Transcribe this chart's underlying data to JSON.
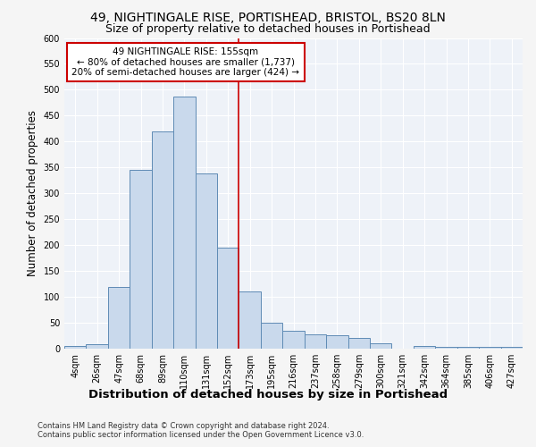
{
  "title1": "49, NIGHTINGALE RISE, PORTISHEAD, BRISTOL, BS20 8LN",
  "title2": "Size of property relative to detached houses in Portishead",
  "xlabel": "Distribution of detached houses by size in Portishead",
  "ylabel": "Number of detached properties",
  "bin_labels": [
    "4sqm",
    "26sqm",
    "47sqm",
    "68sqm",
    "89sqm",
    "110sqm",
    "131sqm",
    "152sqm",
    "173sqm",
    "195sqm",
    "216sqm",
    "237sqm",
    "258sqm",
    "279sqm",
    "300sqm",
    "321sqm",
    "342sqm",
    "364sqm",
    "385sqm",
    "406sqm",
    "427sqm"
  ],
  "bar_heights": [
    6,
    8,
    120,
    345,
    420,
    487,
    338,
    195,
    111,
    50,
    35,
    27,
    26,
    20,
    10,
    0,
    5,
    4,
    3,
    4,
    3
  ],
  "bar_color": "#c9d9ec",
  "bar_edge_color": "#5f8bb5",
  "ylim": [
    0,
    600
  ],
  "yticks": [
    0,
    50,
    100,
    150,
    200,
    250,
    300,
    350,
    400,
    450,
    500,
    550,
    600
  ],
  "vline_x": 7.5,
  "vline_color": "#cc0000",
  "annotation_title": "49 NIGHTINGALE RISE: 155sqm",
  "annotation_line1": "← 80% of detached houses are smaller (1,737)",
  "annotation_line2": "20% of semi-detached houses are larger (424) →",
  "annotation_box_color": "#ffffff",
  "annotation_box_edgecolor": "#cc0000",
  "footer1": "Contains HM Land Registry data © Crown copyright and database right 2024.",
  "footer2": "Contains public sector information licensed under the Open Government Licence v3.0.",
  "background_color": "#eef2f8",
  "grid_color": "#ffffff",
  "fig_background": "#f5f5f5",
  "title1_fontsize": 10,
  "title2_fontsize": 9,
  "xlabel_fontsize": 9.5,
  "ylabel_fontsize": 8.5,
  "tick_fontsize": 7,
  "annotation_fontsize": 7.5,
  "footer_fontsize": 6
}
